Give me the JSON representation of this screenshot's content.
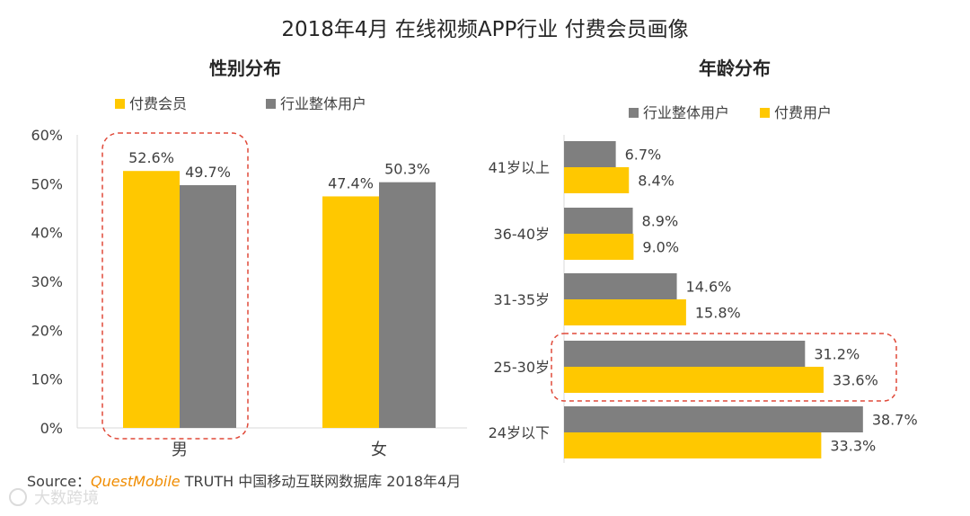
{
  "page_title": "2018年4月 在线视频APP行业 付费会员画像",
  "colors": {
    "yellow": "#FFC800",
    "gray": "#7F7F7F",
    "axis": "#595959",
    "highlight": "#E04A3A"
  },
  "source": {
    "prefix": "Source：",
    "brand": "QuestMobile",
    "rest": " TRUTH 中国移动互联网数据库 2018年4月"
  },
  "watermark": "大数跨境",
  "chart_data": [
    {
      "type": "bar",
      "title": "性别分布",
      "categories": [
        "男",
        "女"
      ],
      "series": [
        {
          "name": "付费会员",
          "color": "yellow",
          "values": [
            52.6,
            47.4
          ],
          "labels": [
            "52.6%",
            "47.4%"
          ]
        },
        {
          "name": "行业整体用户",
          "color": "gray",
          "values": [
            49.7,
            50.3
          ],
          "labels": [
            "49.7%",
            "50.3%"
          ]
        }
      ],
      "ylim": [
        0,
        60
      ],
      "yticks": [
        "0%",
        "10%",
        "20%",
        "30%",
        "40%",
        "50%",
        "60%"
      ],
      "highlight_category": "男"
    },
    {
      "type": "bar",
      "orientation": "horizontal",
      "title": "年龄分布",
      "categories": [
        "41岁以上",
        "36-40岁",
        "31-35岁",
        "25-30岁",
        "24岁以下"
      ],
      "series": [
        {
          "name": "行业整体用户",
          "color": "gray",
          "values": [
            6.7,
            8.9,
            14.6,
            31.2,
            38.7
          ],
          "labels": [
            "6.7%",
            "8.9%",
            "14.6%",
            "31.2%",
            "38.7%"
          ]
        },
        {
          "name": "付费用户",
          "color": "yellow",
          "values": [
            8.4,
            9.0,
            15.8,
            33.6,
            33.3
          ],
          "labels": [
            "8.4%",
            "9.0%",
            "15.8%",
            "33.6%",
            "33.3%"
          ]
        }
      ],
      "xlim": [
        0,
        40
      ],
      "highlight_category": "25-30岁"
    }
  ]
}
